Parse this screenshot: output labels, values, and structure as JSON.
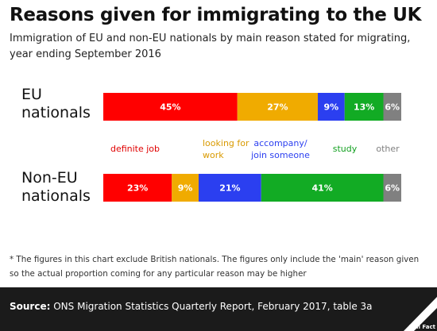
{
  "title": "Reasons given for immigrating to the UK",
  "subtitle": "Immigration of EU and non-EU nationals by main reason stated for migrating, year ending September 2016",
  "chart_data": {
    "type": "bar",
    "orientation": "horizontal",
    "stacked": true,
    "unit": "%",
    "categories": [
      "EU nationals",
      "Non-EU nationals"
    ],
    "series": [
      {
        "name": "definite job",
        "color": "#ff0000",
        "values": [
          45,
          23
        ]
      },
      {
        "name": "looking for work",
        "color": "#f0ab00",
        "values": [
          27,
          9
        ]
      },
      {
        "name": "accompany/ join someone",
        "color": "#2b3ff0",
        "values": [
          9,
          21
        ]
      },
      {
        "name": "study",
        "color": "#12ab24",
        "values": [
          13,
          41
        ]
      },
      {
        "name": "other",
        "color": "#808080",
        "values": [
          6,
          6
        ]
      }
    ],
    "legend": {
      "placement": "between-bars",
      "items": [
        {
          "lines": [
            "definite job"
          ],
          "color": "#e00000"
        },
        {
          "lines": [
            "looking for",
            "work"
          ],
          "color": "#d99a00"
        },
        {
          "lines": [
            "accompany/",
            "join someone"
          ],
          "color": "#2b3ff0"
        },
        {
          "lines": [
            "study"
          ],
          "color": "#12a020"
        },
        {
          "lines": [
            "other"
          ],
          "color": "#808080"
        }
      ]
    }
  },
  "row_labels": {
    "eu": [
      "EU",
      "nationals"
    ],
    "noneu": [
      "Non-EU",
      "nationals"
    ]
  },
  "footnote": "* The figures in this chart exclude British nationals. The figures only include the 'main' reason given so the actual proportion coming for any particular reason may be higher",
  "source": {
    "label": "Source:",
    "text": "ONS Migration Statistics Quarterly Report, February 2017, table 3a"
  },
  "logo_text": "Full Fact"
}
